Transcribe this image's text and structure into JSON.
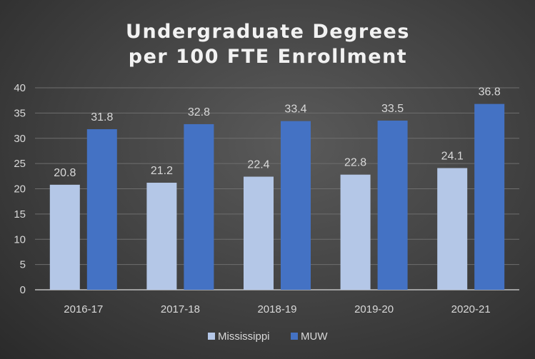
{
  "chart_data": {
    "type": "bar",
    "title": [
      "Undergraduate Degrees",
      "per 100 FTE Enrollment"
    ],
    "categories": [
      "2016-17",
      "2017-18",
      "2018-19",
      "2019-20",
      "2020-21"
    ],
    "series": [
      {
        "name": "Mississippi",
        "color": "#b4c7e7",
        "values": [
          20.8,
          21.2,
          22.4,
          22.8,
          24.1
        ]
      },
      {
        "name": "MUW",
        "color": "#4472c4",
        "values": [
          31.8,
          32.8,
          33.4,
          33.5,
          36.8
        ]
      }
    ],
    "yticks": [
      "0",
      "5",
      "10",
      "15",
      "20",
      "25",
      "30",
      "35",
      "40"
    ],
    "ylim": [
      0,
      40
    ],
    "xlabel": "",
    "ylabel": "",
    "grid": true,
    "legend_position": "bottom"
  }
}
